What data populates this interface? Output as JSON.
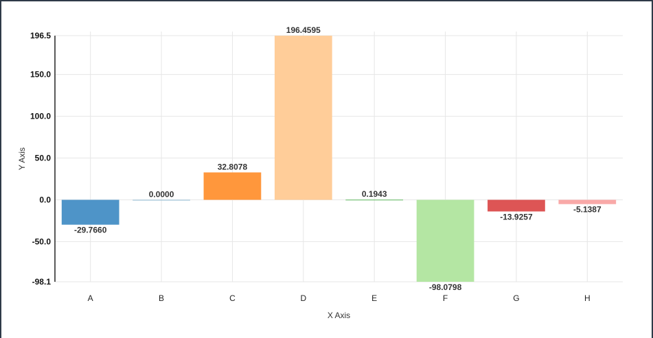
{
  "chart_data": {
    "type": "bar",
    "categories": [
      "A",
      "B",
      "C",
      "D",
      "E",
      "F",
      "G",
      "H"
    ],
    "values": [
      -29.766,
      0.0,
      32.8078,
      196.4595,
      0.1943,
      -98.0798,
      -13.9257,
      -5.1387
    ],
    "value_labels": [
      "-29.7660",
      "0.0000",
      "32.8078",
      "196.4595",
      "0.1943",
      "-98.0798",
      "-13.9257",
      "-5.1387"
    ],
    "colors": [
      "#4e94c8",
      "#8fbcd4",
      "#ff973c",
      "#ffcd99",
      "#5db85d",
      "#b4e6a3",
      "#dd5555",
      "#f9a9a8"
    ],
    "xlabel": "X Axis",
    "ylabel": "Y Axis",
    "ylim": [
      -98.1,
      196.5
    ],
    "yticks": [
      196.5,
      150.0,
      100.0,
      50.0,
      0.0,
      -50.0,
      -98.1
    ],
    "ytick_labels": [
      "196.5",
      "150.0",
      "100.0",
      "50.0",
      "0.0",
      "-50.0",
      "-98.1"
    ],
    "grid": true
  }
}
